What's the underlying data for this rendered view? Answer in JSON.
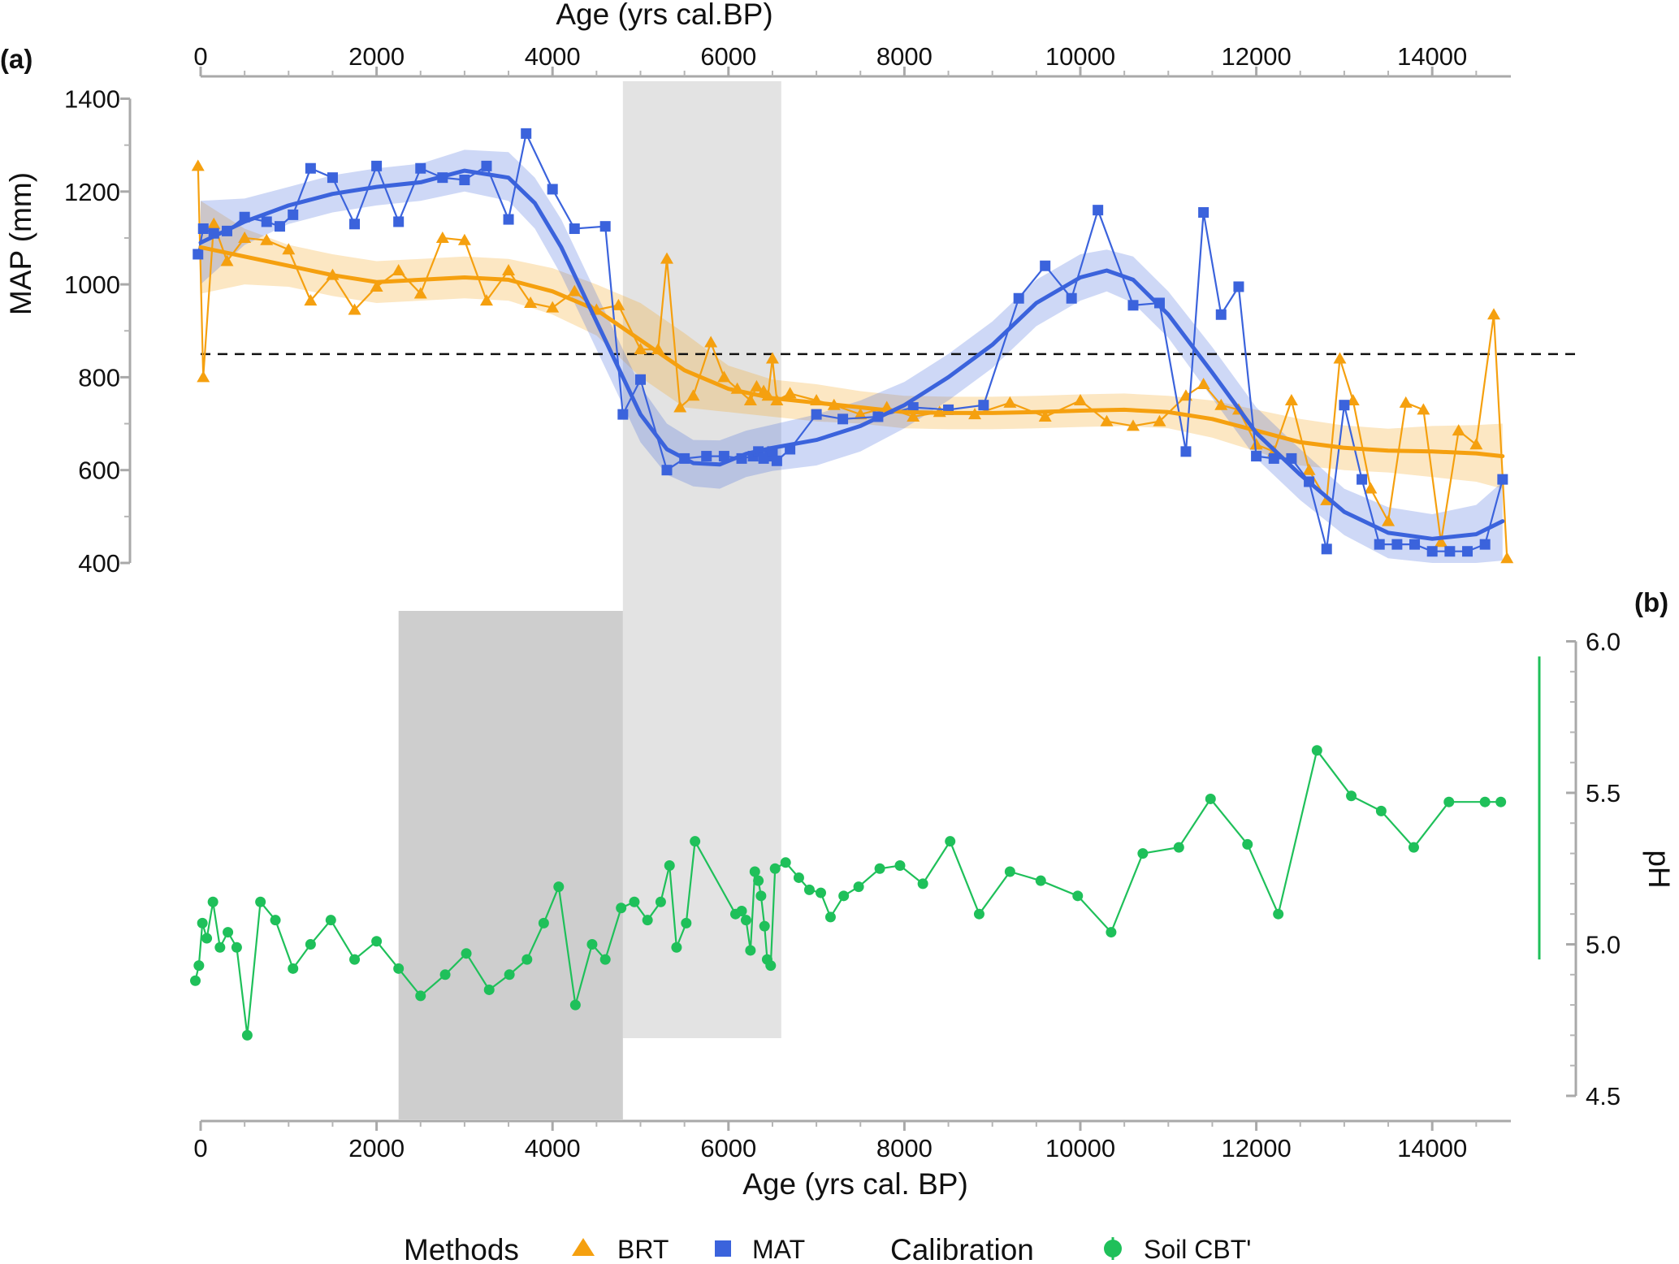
{
  "chart_data": {
    "type": "line",
    "panel_labels": {
      "a": "(a)",
      "b": "(b)"
    },
    "x_axis_top": {
      "label": "Age (yrs cal.BP)",
      "ticks": [
        0,
        2000,
        4000,
        6000,
        8000,
        10000,
        12000,
        14000
      ],
      "range": [
        0,
        14850
      ]
    },
    "x_axis_bottom": {
      "label": "Age (yrs cal. BP)",
      "ticks": [
        0,
        2000,
        4000,
        6000,
        8000,
        10000,
        12000,
        14000
      ],
      "range": [
        0,
        14850
      ]
    },
    "panel_a": {
      "ylabel": "MAP (mm)",
      "ylim": [
        400,
        1400
      ],
      "yticks": [
        400,
        600,
        800,
        1000,
        1200,
        1400
      ],
      "reference_line": 850,
      "shaded_interval": [
        4800,
        6600
      ],
      "series": [
        {
          "name": "BRT",
          "color": "#f5a00f",
          "marker": "triangle",
          "x": [
            -30,
            30,
            150,
            300,
            500,
            750,
            1000,
            1250,
            1500,
            1750,
            2000,
            2250,
            2500,
            2750,
            3000,
            3250,
            3500,
            3750,
            4000,
            4250,
            4500,
            4750,
            5000,
            5200,
            5300,
            5450,
            5600,
            5800,
            5950,
            6100,
            6250,
            6320,
            6400,
            6450,
            6500,
            6550,
            6700,
            7000,
            7200,
            7500,
            7800,
            8100,
            8400,
            8800,
            9200,
            9600,
            10000,
            10300,
            10600,
            10900,
            11200,
            11400,
            11600,
            11800,
            12000,
            12200,
            12400,
            12600,
            12800,
            12950,
            13100,
            13300,
            13500,
            13700,
            13900,
            14100,
            14300,
            14500,
            14700,
            14850
          ],
          "values": [
            1255,
            800,
            1130,
            1050,
            1100,
            1095,
            1075,
            965,
            1020,
            945,
            995,
            1030,
            980,
            1100,
            1095,
            965,
            1030,
            960,
            950,
            985,
            945,
            955,
            860,
            860,
            1055,
            735,
            760,
            875,
            800,
            775,
            750,
            780,
            770,
            760,
            840,
            750,
            765,
            750,
            740,
            720,
            735,
            715,
            725,
            720,
            745,
            715,
            750,
            705,
            695,
            705,
            760,
            785,
            740,
            730,
            655,
            640,
            750,
            600,
            535,
            840,
            750,
            560,
            490,
            745,
            730,
            445,
            685,
            655,
            935,
            410
          ]
        },
        {
          "name": "MAT",
          "color": "#3b63dc",
          "marker": "square",
          "x": [
            -30,
            30,
            150,
            300,
            500,
            750,
            900,
            1050,
            1250,
            1500,
            1750,
            2000,
            2250,
            2500,
            2750,
            3000,
            3250,
            3500,
            3700,
            4000,
            4250,
            4600,
            4800,
            5000,
            5300,
            5500,
            5750,
            5950,
            6150,
            6280,
            6340,
            6400,
            6460,
            6500,
            6550,
            6700,
            7000,
            7300,
            7700,
            8100,
            8500,
            8900,
            9300,
            9600,
            9900,
            10200,
            10600,
            10900,
            11200,
            11400,
            11600,
            11800,
            12000,
            12200,
            12400,
            12600,
            12800,
            13000,
            13200,
            13400,
            13600,
            13800,
            14000,
            14200,
            14400,
            14600,
            14800
          ],
          "values": [
            1065,
            1120,
            1110,
            1115,
            1145,
            1135,
            1125,
            1150,
            1250,
            1230,
            1130,
            1255,
            1135,
            1250,
            1230,
            1225,
            1255,
            1140,
            1325,
            1205,
            1120,
            1125,
            720,
            795,
            600,
            625,
            630,
            630,
            625,
            630,
            640,
            625,
            630,
            640,
            620,
            645,
            720,
            710,
            715,
            735,
            730,
            740,
            970,
            1040,
            970,
            1160,
            955,
            960,
            640,
            1155,
            935,
            995,
            630,
            625,
            625,
            575,
            430,
            740,
            580,
            440,
            440,
            440,
            425,
            425,
            425,
            440,
            580
          ]
        },
        {
          "name": "BRT smooth",
          "color": "#f5a00f",
          "x": [
            0,
            500,
            1000,
            1500,
            2000,
            2500,
            3000,
            3500,
            4000,
            4500,
            5000,
            5500,
            6000,
            6500,
            7000,
            7500,
            8000,
            8500,
            9000,
            9500,
            10000,
            10500,
            11000,
            11500,
            12000,
            12500,
            13000,
            13500,
            14000,
            14500,
            14800
          ],
          "values": [
            1080,
            1060,
            1040,
            1020,
            1005,
            1010,
            1015,
            1010,
            985,
            945,
            880,
            815,
            775,
            755,
            745,
            735,
            725,
            723,
            723,
            725,
            728,
            730,
            725,
            710,
            685,
            660,
            648,
            642,
            640,
            636,
            630
          ]
        },
        {
          "name": "MAT smooth",
          "color": "#3b63dc",
          "x": [
            0,
            500,
            1000,
            1500,
            2000,
            2500,
            3000,
            3500,
            3800,
            4100,
            4400,
            4700,
            5000,
            5300,
            5600,
            5900,
            6200,
            6500,
            7000,
            7500,
            8000,
            8500,
            9000,
            9500,
            10000,
            10300,
            10600,
            11000,
            11500,
            12000,
            12500,
            13000,
            13500,
            14000,
            14500,
            14800
          ],
          "values": [
            1090,
            1135,
            1170,
            1195,
            1210,
            1220,
            1245,
            1230,
            1175,
            1080,
            960,
            840,
            720,
            645,
            615,
            612,
            635,
            648,
            665,
            695,
            740,
            800,
            870,
            960,
            1015,
            1030,
            1010,
            935,
            810,
            680,
            590,
            510,
            465,
            452,
            462,
            490
          ]
        },
        {
          "name": "BRT band",
          "color": "#f5a00f",
          "x": [
            0,
            500,
            1000,
            1500,
            2000,
            2500,
            3000,
            3500,
            4000,
            4500,
            5000,
            5500,
            6000,
            6500,
            7000,
            7500,
            8000,
            8500,
            9000,
            9500,
            10000,
            10500,
            11000,
            11500,
            12000,
            12500,
            13000,
            13500,
            14000,
            14500,
            14800
          ],
          "lower": [
            980,
            1000,
            995,
            975,
            960,
            965,
            970,
            965,
            935,
            890,
            800,
            735,
            725,
            715,
            705,
            700,
            690,
            688,
            688,
            690,
            693,
            695,
            690,
            670,
            640,
            610,
            600,
            595,
            585,
            575,
            560
          ],
          "upper": [
            1180,
            1120,
            1085,
            1065,
            1050,
            1055,
            1060,
            1055,
            1035,
            1000,
            960,
            895,
            825,
            795,
            785,
            770,
            760,
            758,
            758,
            760,
            763,
            765,
            760,
            750,
            730,
            710,
            696,
            689,
            695,
            697,
            700
          ]
        },
        {
          "name": "MAT band",
          "color": "#3b63dc",
          "x": [
            0,
            500,
            1000,
            1500,
            2000,
            2500,
            3000,
            3500,
            3800,
            4100,
            4400,
            4700,
            5000,
            5300,
            5600,
            5900,
            6200,
            6500,
            7000,
            7500,
            8000,
            8500,
            9000,
            9500,
            10000,
            10300,
            10600,
            11000,
            11500,
            12000,
            12500,
            13000,
            13500,
            14000,
            14500,
            14800
          ],
          "lower": [
            1000,
            1085,
            1130,
            1155,
            1170,
            1180,
            1200,
            1180,
            1120,
            1020,
            900,
            780,
            660,
            590,
            565,
            560,
            585,
            598,
            610,
            640,
            690,
            750,
            820,
            910,
            965,
            985,
            960,
            885,
            755,
            625,
            535,
            460,
            410,
            400,
            400,
            405
          ],
          "upper": [
            1180,
            1185,
            1210,
            1235,
            1250,
            1260,
            1290,
            1285,
            1230,
            1140,
            1020,
            900,
            780,
            700,
            665,
            664,
            685,
            698,
            720,
            750,
            790,
            850,
            920,
            1010,
            1065,
            1075,
            1060,
            985,
            865,
            735,
            645,
            560,
            520,
            505,
            525,
            575
          ]
        }
      ]
    },
    "panel_b": {
      "ylabel": "pH",
      "ylim": [
        4.5,
        6.0
      ],
      "yticks": [
        4.5,
        5.0,
        5.5,
        6.0
      ],
      "yticklabels": [
        "4.5",
        "5.0",
        "5.5",
        "6.0"
      ],
      "range_bar": [
        4.95,
        5.95
      ],
      "shaded_interval": [
        2250,
        4800
      ],
      "series": [
        {
          "name": "Soil CBT'",
          "color": "#1fc05a",
          "marker": "circle",
          "x": [
            -60,
            -20,
            20,
            70,
            140,
            220,
            310,
            410,
            530,
            680,
            850,
            1050,
            1250,
            1480,
            1750,
            2000,
            2250,
            2500,
            2780,
            3020,
            3280,
            3510,
            3710,
            3900,
            4070,
            4260,
            4450,
            4600,
            4780,
            4930,
            5080,
            5230,
            5330,
            5410,
            5520,
            5620,
            6080,
            6150,
            6200,
            6250,
            6300,
            6340,
            6370,
            6410,
            6440,
            6480,
            6530,
            6650,
            6800,
            6920,
            7050,
            7160,
            7310,
            7480,
            7720,
            7950,
            8210,
            8520,
            8850,
            9200,
            9550,
            9970,
            10350,
            10710,
            11120,
            11480,
            11900,
            12250,
            12690,
            13080,
            13420,
            13790,
            14190,
            14600,
            14780
          ],
          "values": [
            4.88,
            4.93,
            5.07,
            5.02,
            5.14,
            4.99,
            5.04,
            4.99,
            4.7,
            5.14,
            5.08,
            4.92,
            5.0,
            5.08,
            4.95,
            5.01,
            4.92,
            4.83,
            4.9,
            4.97,
            4.85,
            4.9,
            4.95,
            5.07,
            5.19,
            4.8,
            5.0,
            4.95,
            5.12,
            5.14,
            5.08,
            5.14,
            5.26,
            4.99,
            5.07,
            5.34,
            5.1,
            5.11,
            5.08,
            4.98,
            5.24,
            5.21,
            5.16,
            5.06,
            4.95,
            4.93,
            5.25,
            5.27,
            5.22,
            5.18,
            5.17,
            5.09,
            5.16,
            5.19,
            5.25,
            5.26,
            5.2,
            5.34,
            5.1,
            5.24,
            5.21,
            5.16,
            5.04,
            5.3,
            5.32,
            5.48,
            5.33,
            5.1,
            5.64,
            5.49,
            5.44,
            5.32,
            5.47,
            5.47,
            5.47
          ]
        }
      ]
    },
    "legend": {
      "placement": "bottom",
      "methods_title": "Methods",
      "methods": [
        {
          "label": "BRT",
          "marker": "triangle",
          "color": "#f5a00f"
        },
        {
          "label": "MAT",
          "marker": "square",
          "color": "#3b63dc"
        }
      ],
      "calibration_title": "Calibration",
      "calibration": [
        {
          "label": "Soil CBT'",
          "marker": "circle",
          "color": "#1fc05a"
        }
      ]
    },
    "colors": {
      "shade_light": "#e3e3e3",
      "shade_dark": "#cecece",
      "axis": "#a9a9a9"
    }
  }
}
